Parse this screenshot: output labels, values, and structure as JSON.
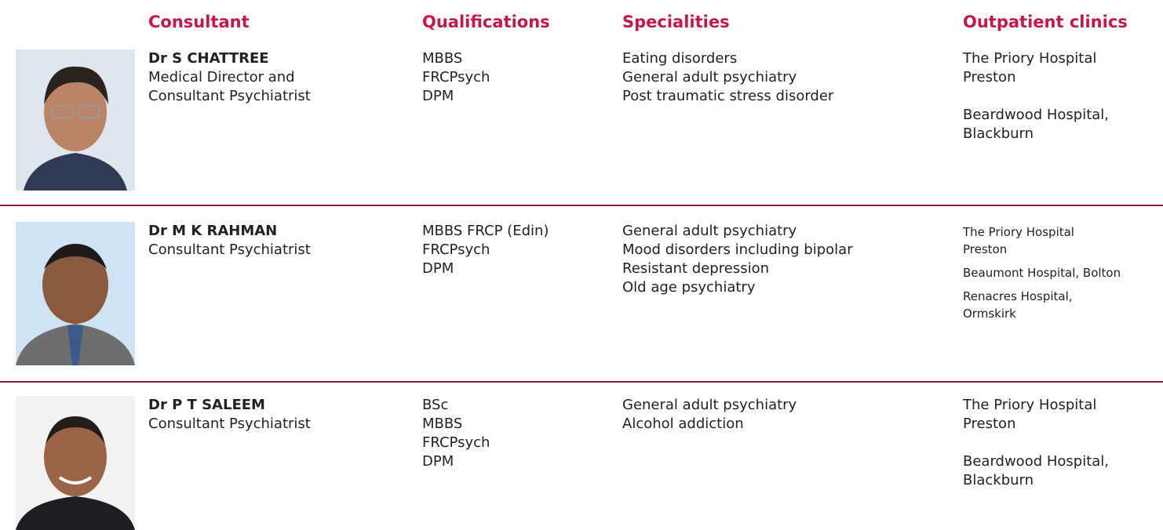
{
  "header": {
    "columns": [
      "Consultant",
      "Qualifications",
      "Specialities",
      "Outpatient clinics"
    ]
  },
  "rows": [
    {
      "name": "Dr S CHATTREE",
      "title": [
        "Medical Director and",
        "Consultant Psychiatrist"
      ],
      "qualifications": [
        "MBBS",
        "FRCPsych",
        "DPM"
      ],
      "specialities": [
        "Eating disorders",
        "General adult psychiatry",
        "Post traumatic stress disorder"
      ],
      "clinics": [
        [
          "The Priory Hospital",
          "Preston"
        ],
        [
          "Beardwood Hospital,",
          "Blackburn"
        ]
      ]
    },
    {
      "name": "Dr M K RAHMAN",
      "title": [
        "Consultant Psychiatrist"
      ],
      "qualifications": [
        "MBBS FRCP (Edin)",
        "FRCPsych",
        "DPM"
      ],
      "specialities": [
        "General adult psychiatry",
        "Mood disorders including bipolar",
        "Resistant depression",
        "Old age psychiatry"
      ],
      "clinics": [
        [
          "The Priory Hospital",
          "Preston"
        ],
        [
          "Beaumont Hospital, Bolton"
        ],
        [
          "Renacres Hospital,",
          "Ormskirk"
        ]
      ]
    },
    {
      "name": "Dr P T SALEEM",
      "title": [
        "Consultant Psychiatrist"
      ],
      "qualifications": [
        "BSc",
        "MBBS",
        "FRCPsych",
        "DPM"
      ],
      "specialities": [
        "General adult psychiatry",
        "Alcohol addiction"
      ],
      "clinics": [
        [
          "The Priory Hospital",
          "Preston"
        ],
        [
          "Beardwood Hospital,",
          "Blackburn"
        ]
      ]
    }
  ]
}
